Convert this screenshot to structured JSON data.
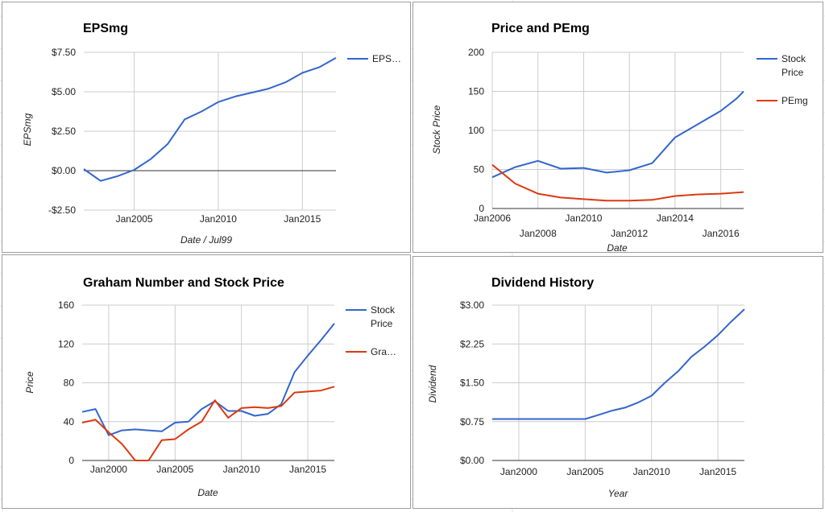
{
  "colors": {
    "stock": "#3366cc",
    "secondary": "#dc3912",
    "gridline": "#cccccc"
  },
  "chart_data": [
    {
      "id": "p1",
      "type": "line",
      "title": "EPSmg",
      "xlabel": "Date / Jul99",
      "ylabel": "EPSmg",
      "ylim": [
        -2.5,
        7.5
      ],
      "xlim": [
        2002.0,
        2017.0
      ],
      "yticks": [
        {
          "v": 7.5,
          "label": "$7.50"
        },
        {
          "v": 5.0,
          "label": "$5.00"
        },
        {
          "v": 2.5,
          "label": "$2.50"
        },
        {
          "v": 0.0,
          "label": "$0.00"
        },
        {
          "v": -2.5,
          "label": "-$2.50"
        }
      ],
      "xticks": [
        {
          "v": 2005,
          "label": "Jan2005"
        },
        {
          "v": 2010,
          "label": "Jan2010"
        },
        {
          "v": 2015,
          "label": "Jan2015"
        }
      ],
      "legend_position": "right",
      "series": [
        {
          "name": "EPS…",
          "color": "#3366cc",
          "x": [
            2002.0,
            2003.0,
            2004.0,
            2005.0,
            2006.0,
            2007.0,
            2008.0,
            2009.0,
            2010.0,
            2011.0,
            2012.0,
            2013.0,
            2014.0,
            2015.0,
            2016.0,
            2017.0
          ],
          "y": [
            0.1,
            -0.65,
            -0.35,
            0.05,
            0.75,
            1.7,
            3.25,
            3.75,
            4.35,
            4.7,
            4.95,
            5.2,
            5.6,
            6.2,
            6.55,
            7.15
          ]
        }
      ]
    },
    {
      "id": "p2",
      "type": "line",
      "title": "Price and PEmg",
      "xlabel": "Date",
      "ylabel": "Stock Price",
      "ylim": [
        0,
        200
      ],
      "xlim": [
        2006.0,
        2017.0
      ],
      "yticks": [
        {
          "v": 200,
          "label": "200"
        },
        {
          "v": 150,
          "label": "150"
        },
        {
          "v": 100,
          "label": "100"
        },
        {
          "v": 50,
          "label": "50"
        },
        {
          "v": 0,
          "label": "0"
        }
      ],
      "xticks": [
        {
          "v": 2006,
          "label": "Jan2006",
          "row": 0
        },
        {
          "v": 2008,
          "label": "Jan2008",
          "row": 1
        },
        {
          "v": 2010,
          "label": "Jan2010",
          "row": 0
        },
        {
          "v": 2012,
          "label": "Jan2012",
          "row": 1
        },
        {
          "v": 2014,
          "label": "Jan2014",
          "row": 0
        },
        {
          "v": 2016,
          "label": "Jan2016",
          "row": 1
        }
      ],
      "legend_position": "right",
      "series": [
        {
          "name_lines": [
            "Stock",
            "Price"
          ],
          "color": "#3366cc",
          "x": [
            2006.0,
            2007.0,
            2008.0,
            2009.0,
            2010.0,
            2011.0,
            2012.0,
            2013.0,
            2014.0,
            2015.0,
            2016.0,
            2016.7,
            2017.0
          ],
          "y": [
            40,
            53,
            61,
            51,
            52,
            46,
            49,
            58,
            91,
            108,
            125,
            141,
            150
          ]
        },
        {
          "name_lines": [
            "PEmg"
          ],
          "color": "#dc3912",
          "x": [
            2006.0,
            2007.0,
            2008.0,
            2009.0,
            2010.0,
            2011.0,
            2012.0,
            2013.0,
            2014.0,
            2015.0,
            2016.0,
            2017.0
          ],
          "y": [
            56,
            32,
            19,
            14,
            12,
            10,
            10,
            11,
            16,
            18,
            19,
            21
          ]
        }
      ]
    },
    {
      "id": "p3",
      "type": "line",
      "title": "Graham Number and Stock Price",
      "xlabel": "Date",
      "ylabel": "Price",
      "ylim": [
        0,
        160
      ],
      "xlim": [
        1998.0,
        2017.0
      ],
      "yticks": [
        {
          "v": 160,
          "label": "160"
        },
        {
          "v": 120,
          "label": "120"
        },
        {
          "v": 80,
          "label": "80"
        },
        {
          "v": 40,
          "label": "40"
        },
        {
          "v": 0,
          "label": "0"
        }
      ],
      "xticks": [
        {
          "v": 2000,
          "label": "Jan2000"
        },
        {
          "v": 2005,
          "label": "Jan2005"
        },
        {
          "v": 2010,
          "label": "Jan2010"
        },
        {
          "v": 2015,
          "label": "Jan2015"
        }
      ],
      "legend_position": "right",
      "series": [
        {
          "name_lines": [
            "Stock",
            "Price"
          ],
          "color": "#3366cc",
          "x": [
            1998.0,
            1999.0,
            2000.0,
            2001.0,
            2002.0,
            2003.0,
            2004.0,
            2005.0,
            2006.0,
            2007.0,
            2008.0,
            2009.0,
            2010.0,
            2011.0,
            2012.0,
            2013.0,
            2014.0,
            2015.0,
            2016.0,
            2017.0
          ],
          "y": [
            50,
            53,
            26,
            31,
            32,
            31,
            30,
            39,
            40,
            53,
            61,
            51,
            51,
            46,
            48,
            58,
            91,
            108,
            124,
            141
          ]
        },
        {
          "name_lines": [
            "Gra…"
          ],
          "color": "#dc3912",
          "x": [
            1998.0,
            1999.0,
            2000.0,
            2001.0,
            2002.0,
            2003.0,
            2004.0,
            2005.0,
            2006.0,
            2007.0,
            2008.0,
            2009.0,
            2010.0,
            2011.0,
            2012.0,
            2013.0,
            2014.0,
            2015.0,
            2016.0,
            2017.0
          ],
          "y": [
            39,
            42,
            29,
            17,
            0,
            0,
            21,
            22,
            32,
            40,
            62,
            44,
            54,
            55,
            54,
            56,
            70,
            71,
            72,
            76
          ]
        }
      ]
    },
    {
      "id": "p4",
      "type": "line",
      "title": "Dividend History",
      "xlabel": "Year",
      "ylabel": "Dividend",
      "ylim": [
        0,
        3.0
      ],
      "xlim": [
        1998.0,
        2017.0
      ],
      "yticks": [
        {
          "v": 3.0,
          "label": "$3.00"
        },
        {
          "v": 2.25,
          "label": "$2.25"
        },
        {
          "v": 1.5,
          "label": "$1.50"
        },
        {
          "v": 0.75,
          "label": "$0.75"
        },
        {
          "v": 0.0,
          "label": "$0.00"
        }
      ],
      "xticks": [
        {
          "v": 2000,
          "label": "Jan2000"
        },
        {
          "v": 2005,
          "label": "Jan2005"
        },
        {
          "v": 2010,
          "label": "Jan2010"
        },
        {
          "v": 2015,
          "label": "Jan2015"
        }
      ],
      "legend_position": "none",
      "series": [
        {
          "color": "#3366cc",
          "x": [
            1998.0,
            1999.0,
            2000.0,
            2001.0,
            2002.0,
            2003.0,
            2004.0,
            2005.0,
            2006.0,
            2007.0,
            2008.0,
            2009.0,
            2010.0,
            2011.0,
            2012.0,
            2013.0,
            2014.0,
            2015.0,
            2016.0,
            2017.0
          ],
          "y": [
            0.8,
            0.8,
            0.8,
            0.8,
            0.8,
            0.8,
            0.8,
            0.8,
            0.88,
            0.96,
            1.02,
            1.12,
            1.25,
            1.5,
            1.72,
            2.0,
            2.2,
            2.42,
            2.68,
            2.92
          ]
        }
      ]
    }
  ]
}
